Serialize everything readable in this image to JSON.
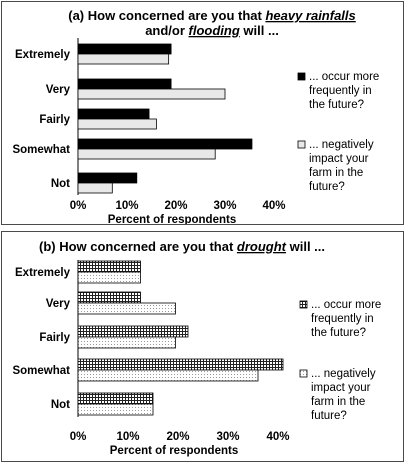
{
  "chart_data": [
    {
      "type": "bar",
      "orientation": "horizontal",
      "title_parts": [
        {
          "text": "(a) How concerned are you that ",
          "emph": false
        },
        {
          "text": "heavy rainfalls",
          "emph": true
        },
        {
          "text": "",
          "emph": false,
          "break": true
        },
        {
          "text": "and/or ",
          "emph": false
        },
        {
          "text": "flooding",
          "emph": true
        },
        {
          "text": " will ...",
          "emph": false
        }
      ],
      "categories": [
        "Extremely",
        "Very",
        "Fairly",
        "Somewhat",
        "Not"
      ],
      "xlabel": "Percent of respondents",
      "xlim": [
        0,
        40
      ],
      "xticks": [
        "0%",
        "10%",
        "20%",
        "30%",
        "40%"
      ],
      "legend_position": "right",
      "series": [
        {
          "name": "... occur more frequently in the future?",
          "style": "solid-black",
          "values": [
            19,
            19,
            14.5,
            35.5,
            12
          ]
        },
        {
          "name": "... negatively impact your farm in the future?",
          "style": "light-gray",
          "values": [
            18.5,
            30,
            16,
            28,
            7
          ]
        }
      ]
    },
    {
      "type": "bar",
      "orientation": "horizontal",
      "title_parts": [
        {
          "text": "(b) How concerned are you that ",
          "emph": false
        },
        {
          "text": "drought",
          "emph": true
        },
        {
          "text": " will ...",
          "emph": false
        }
      ],
      "categories": [
        "Extremely",
        "Very",
        "Fairly",
        "Somewhat",
        "Not"
      ],
      "xlabel": "Percent of respondents",
      "xlim": [
        0,
        40
      ],
      "xticks": [
        "0%",
        "10%",
        "20%",
        "30%",
        "40%"
      ],
      "legend_position": "right",
      "series": [
        {
          "name": "... occur more frequently in the future?",
          "style": "grid-hatch",
          "values": [
            12.5,
            12.5,
            22,
            41,
            15
          ]
        },
        {
          "name": "... negatively impact your farm in the future?",
          "style": "dotted-light",
          "values": [
            12.5,
            19.5,
            19.5,
            36,
            15
          ]
        }
      ]
    }
  ]
}
